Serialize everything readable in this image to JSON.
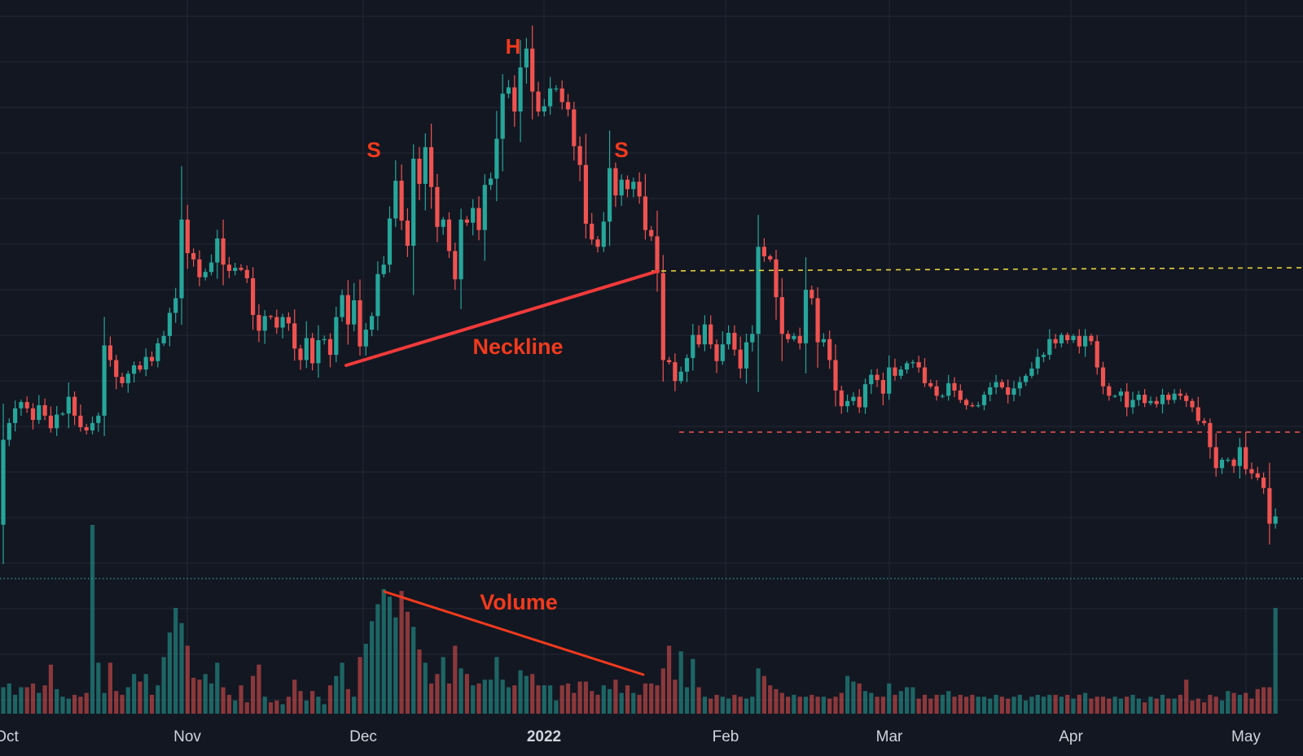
{
  "chart_data": {
    "type": "candlestick",
    "colors": {
      "background": "#131722",
      "grid": "#232735",
      "up": "#26a69a",
      "down": "#ef5350",
      "annotation": "#f23a1d",
      "resistance_line": "#e8d33f",
      "support_line": "#ef5350",
      "dotted_line": "#26a69a",
      "axis_text": "#d1d4dc"
    },
    "x_axis_ticks": [
      "Oct",
      "Nov",
      "Dec",
      "2022",
      "Feb",
      "Mar",
      "Apr",
      "May"
    ],
    "annotations": {
      "left_shoulder": "S",
      "head": "H",
      "right_shoulder": "S",
      "neckline": "Neckline",
      "volume": "Volume"
    },
    "candles_close": [
      58.5,
      60.1,
      61.5,
      62.1,
      61.5,
      60.4,
      61.8,
      60.8,
      59.6,
      60.9,
      61.0,
      62.6,
      60.8,
      59.7,
      59.4,
      60.1,
      60.8,
      67.5,
      66.1,
      64.5,
      63.9,
      64.8,
      65.6,
      65.2,
      66.4,
      66.0,
      67.7,
      68.4,
      70.6,
      72.0,
      79.5,
      76.3,
      75.7,
      74.0,
      74.5,
      75.4,
      77.7,
      75.2,
      74.6,
      74.9,
      74.7,
      73.9,
      70.4,
      68.9,
      70.3,
      70.2,
      69.2,
      70.2,
      69.6,
      67.2,
      66.1,
      68.2,
      65.8,
      68.0,
      68.1,
      66.6,
      70.2,
      72.3,
      69.5,
      71.8,
      67.4,
      69.0,
      70.3,
      74.3,
      75.2,
      79.6,
      83.2,
      79.4,
      77.0,
      85.3,
      82.9,
      86.4,
      82.6,
      78.8,
      79.5,
      76.5,
      73.8,
      79.5,
      79.2,
      80.6,
      78.5,
      82.8,
      83.4,
      87.2,
      91.5,
      92.1,
      89.8,
      94.0,
      95.8,
      91.7,
      89.8,
      90.3,
      92.0,
      92.0,
      90.7,
      90.0,
      86.5,
      84.7,
      79.1,
      77.6,
      76.9,
      79.3,
      84.4,
      81.8,
      83.3,
      82.4,
      83.1,
      81.7,
      78.5,
      77.9,
      74.4,
      66.1,
      65.9,
      64.1,
      65.0,
      66.3,
      68.5,
      67.6,
      69.5,
      67.6,
      66.0,
      67.6,
      68.7,
      67.1,
      65.3,
      67.8,
      68.6,
      76.9,
      76.0,
      75.7,
      72.1,
      68.6,
      68.1,
      68.4,
      67.7,
      72.8,
      72.0,
      67.8,
      68.1,
      66.1,
      63.2,
      61.7,
      62.2,
      62.6,
      61.6,
      63.8,
      64.7,
      64.2,
      62.9,
      65.4,
      64.6,
      65.2,
      65.8,
      65.9,
      65.4,
      63.9,
      63.6,
      62.7,
      62.7,
      63.9,
      63.2,
      62.3,
      61.8,
      61.7,
      61.8,
      62.8,
      63.5,
      64.0,
      63.5,
      62.8,
      63.4,
      64.0,
      64.6,
      65.3,
      66.4,
      66.6,
      68.1,
      67.7,
      68.5,
      68.0,
      68.4,
      67.4,
      68.4,
      67.9,
      65.4,
      63.6,
      62.7,
      62.7,
      63.1,
      61.6,
      62.3,
      62.8,
      62.0,
      62.2,
      61.9,
      62.8,
      62.3,
      62.9,
      62.7,
      62.2,
      61.6,
      60.3,
      60.1,
      57.8,
      55.8,
      56.6,
      56.6,
      56.0,
      57.8,
      55.7,
      55.3,
      54.9,
      53.9,
      50.5,
      51.2
    ],
    "volume_relative": [
      0.14,
      0.16,
      0.1,
      0.14,
      0.14,
      0.16,
      0.11,
      0.15,
      0.26,
      0.13,
      0.09,
      0.08,
      0.1,
      0.09,
      0.11,
      1.0,
      0.27,
      0.11,
      0.27,
      0.12,
      0.1,
      0.14,
      0.21,
      0.17,
      0.21,
      0.1,
      0.15,
      0.3,
      0.43,
      0.56,
      0.48,
      0.36,
      0.19,
      0.18,
      0.21,
      0.16,
      0.27,
      0.14,
      0.1,
      0.07,
      0.15,
      0.06,
      0.2,
      0.26,
      0.09,
      0.06,
      0.07,
      0.05,
      0.09,
      0.18,
      0.12,
      0.07,
      0.12,
      0.09,
      0.05,
      0.15,
      0.2,
      0.27,
      0.13,
      0.09,
      0.3,
      0.37,
      0.49,
      0.58,
      0.66,
      0.62,
      0.51,
      0.65,
      0.54,
      0.46,
      0.34,
      0.27,
      0.16,
      0.21,
      0.3,
      0.16,
      0.36,
      0.24,
      0.21,
      0.15,
      0.16,
      0.18,
      0.18,
      0.3,
      0.18,
      0.14,
      0.15,
      0.23,
      0.2,
      0.21,
      0.15,
      0.15,
      0.15,
      0.07,
      0.15,
      0.16,
      0.11,
      0.17,
      0.17,
      0.12,
      0.1,
      0.15,
      0.13,
      0.18,
      0.11,
      0.15,
      0.11,
      0.1,
      0.16,
      0.16,
      0.15,
      0.24,
      0.36,
      0.18,
      0.33,
      0.14,
      0.29,
      0.14,
      0.09,
      0.08,
      0.1,
      0.09,
      0.08,
      0.1,
      0.09,
      0.08,
      0.09,
      0.24,
      0.2,
      0.15,
      0.13,
      0.11,
      0.09,
      0.1,
      0.09,
      0.09,
      0.1,
      0.09,
      0.09,
      0.08,
      0.09,
      0.11,
      0.2,
      0.17,
      0.16,
      0.12,
      0.11,
      0.09,
      0.09,
      0.16,
      0.1,
      0.12,
      0.14,
      0.14,
      0.08,
      0.1,
      0.08,
      0.1,
      0.1,
      0.12,
      0.09,
      0.1,
      0.09,
      0.1,
      0.09,
      0.09,
      0.08,
      0.1,
      0.09,
      0.08,
      0.09,
      0.1,
      0.07,
      0.09,
      0.1,
      0.09,
      0.1,
      0.1,
      0.09,
      0.1,
      0.08,
      0.1,
      0.11,
      0.08,
      0.09,
      0.09,
      0.08,
      0.09,
      0.08,
      0.09,
      0.1,
      0.08,
      0.06,
      0.09,
      0.08,
      0.1,
      0.08,
      0.08,
      0.1,
      0.18,
      0.07,
      0.08,
      0.06,
      0.1,
      0.09,
      0.07,
      0.12,
      0.11,
      0.1,
      0.11,
      0.08,
      0.13,
      0.14,
      0.14,
      0.56
    ]
  }
}
